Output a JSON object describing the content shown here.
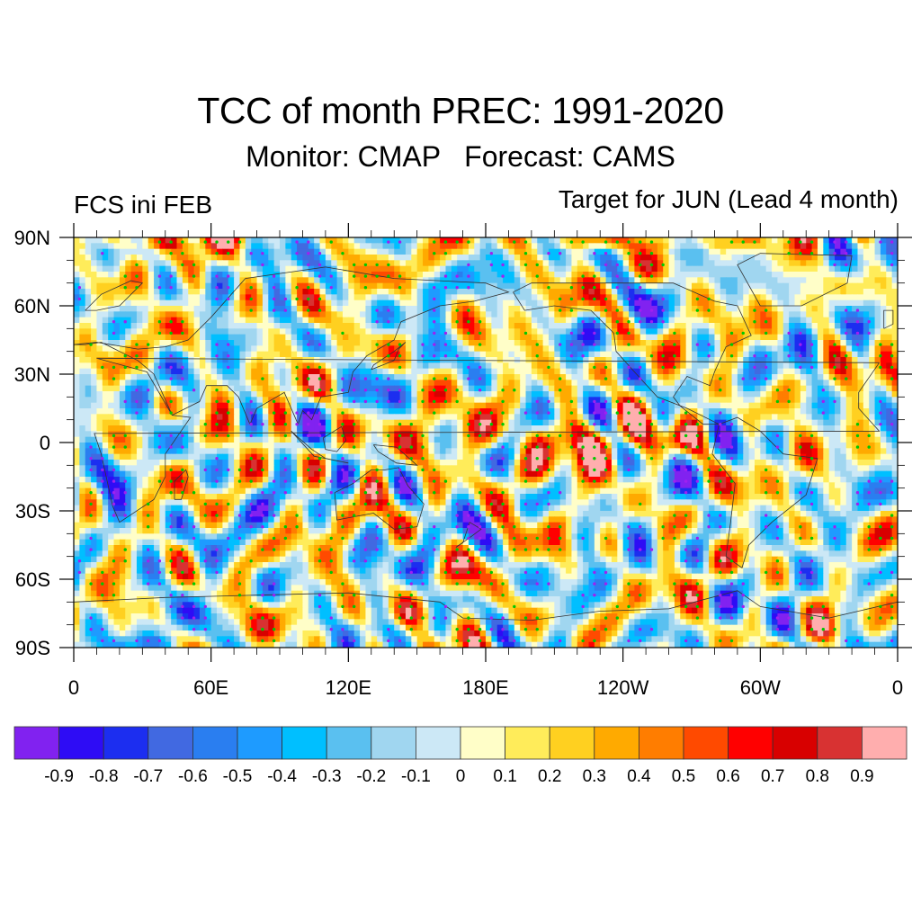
{
  "title": "TCC of month PREC: 1991-2020",
  "subtitle": "Monitor: CMAP   Forecast: CAMS",
  "left_label": "FCS ini FEB",
  "right_label": "Target for JUN (Lead 4 month)",
  "chart_data": {
    "type": "heatmap",
    "title": "TCC of month PREC: 1991-2020",
    "subtitle": "Monitor: CMAP   Forecast: CAMS",
    "annotations": [
      "FCS ini FEB",
      "Target for JUN (Lead 4 month)"
    ],
    "projection": "cylindrical equidistant, global, centered on 180E",
    "x_range": [
      0,
      360
    ],
    "y_range": [
      -90,
      90
    ],
    "x_ticks": [
      {
        "value": 0,
        "label": "0"
      },
      {
        "value": 60,
        "label": "60E"
      },
      {
        "value": 120,
        "label": "120E"
      },
      {
        "value": 180,
        "label": "180E"
      },
      {
        "value": 240,
        "label": "120W"
      },
      {
        "value": 300,
        "label": "60W"
      },
      {
        "value": 360,
        "label": "0"
      }
    ],
    "y_ticks": [
      {
        "value": 90,
        "label": "90N"
      },
      {
        "value": 60,
        "label": "60N"
      },
      {
        "value": 30,
        "label": "30N"
      },
      {
        "value": 0,
        "label": "0"
      },
      {
        "value": -30,
        "label": "30S"
      },
      {
        "value": -60,
        "label": "60S"
      },
      {
        "value": -90,
        "label": "90S"
      }
    ],
    "minor_tick_step_deg": 10,
    "colorbar": {
      "orientation": "horizontal",
      "levels": [
        -0.9,
        -0.8,
        -0.7,
        -0.6,
        -0.5,
        -0.4,
        -0.3,
        -0.2,
        -0.1,
        0,
        0.1,
        0.2,
        0.3,
        0.4,
        0.5,
        0.6,
        0.7,
        0.8,
        0.9
      ],
      "level_labels": [
        "-0.9",
        "-0.8",
        "-0.7",
        "-0.6",
        "-0.5",
        "-0.4",
        "-0.3",
        "-0.2",
        "-0.1",
        "0",
        "0.1",
        "0.2",
        "0.3",
        "0.4",
        "0.5",
        "0.6",
        "0.7",
        "0.8",
        "0.9"
      ],
      "colors": [
        "#8122f0",
        "#2e0cf5",
        "#1c2ef0",
        "#4169e1",
        "#2a7ef0",
        "#1e9bff",
        "#00bfff",
        "#5ac0f0",
        "#a0d6f0",
        "#cce8f6",
        "#fffec8",
        "#ffec5a",
        "#ffd020",
        "#ffaa00",
        "#ff7d00",
        "#ff4a00",
        "#ff0000",
        "#d80000",
        "#d83232",
        "#ffaeae"
      ]
    },
    "stipple": {
      "positive_significant_color": "#00c800",
      "negative_significant_color": "#a020f0"
    },
    "notable_features": [
      "Positive TCC band (0.3-0.7) along equatorial central Pacific from ~150E to ~100W",
      "Positive band near 90N from ~0 to 70E and ~180E to ~300E",
      "Negative patches in South Atlantic/Indian Ocean around 20-40S",
      "Negative stippled strip near 90S between ~20E and ~70E"
    ]
  }
}
